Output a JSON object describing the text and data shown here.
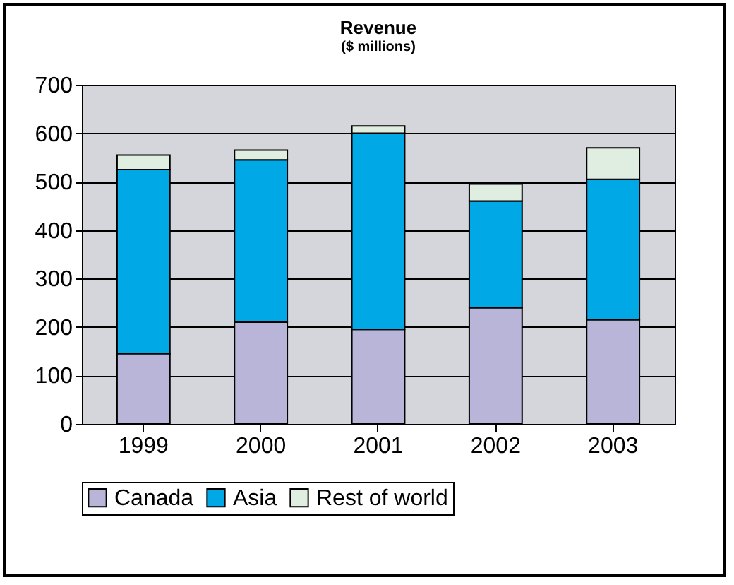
{
  "chart_data": {
    "type": "bar",
    "title": "Revenue",
    "subtitle": "($ millions)",
    "categories": [
      "1999",
      "2000",
      "2001",
      "2002",
      "2003"
    ],
    "stacked": true,
    "series": [
      {
        "name": "Canada",
        "color": "#b9b5d9",
        "values": [
          145,
          210,
          195,
          240,
          215
        ]
      },
      {
        "name": "Asia",
        "color": "#00a9e6",
        "values": [
          380,
          335,
          405,
          220,
          290
        ]
      },
      {
        "name": "Rest of world",
        "color": "#dfeee0",
        "values": [
          30,
          20,
          15,
          35,
          65
        ]
      }
    ],
    "ylim": [
      0,
      700
    ],
    "yticks": [
      0,
      100,
      200,
      300,
      400,
      500,
      600,
      700
    ],
    "grid": "y",
    "legend": "bottom"
  }
}
